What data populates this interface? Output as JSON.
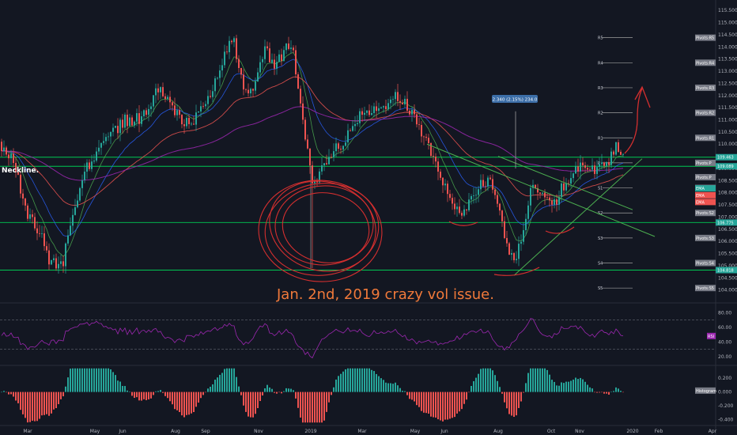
{
  "chart_data": {
    "type": "candlestick",
    "instrument_note": "",
    "x_ticks": [
      "Mar",
      "May",
      "Jun",
      "Aug",
      "Sep",
      "Nov",
      "2019",
      "Mar",
      "May",
      "Jun",
      "Aug",
      "Oct",
      "Nov",
      "2020",
      "Feb",
      "Apr"
    ],
    "price_axis": {
      "ylim": [
        103.5,
        115.8
      ],
      "ticks": [
        "115.500",
        "115.000",
        "114.500",
        "114.000",
        "113.500",
        "113.000",
        "112.500",
        "112.000",
        "111.500",
        "111.000",
        "110.500",
        "110.000",
        "109.500",
        "109.000",
        "108.500",
        "108.000",
        "107.500",
        "107.000",
        "106.500",
        "106.000",
        "105.500",
        "105.000",
        "104.500",
        "104.000"
      ]
    },
    "price_tags": [
      {
        "label": "109.463",
        "value": 109.463,
        "color": "#26a69a"
      },
      {
        "label": "109.089",
        "value": 109.089,
        "color": "#26a69a"
      },
      {
        "label": "106.775",
        "value": 106.775,
        "color": "#26a69a"
      },
      {
        "label": "104.818",
        "value": 104.818,
        "color": "#26a69a"
      }
    ],
    "pivots": [
      {
        "level": "R5",
        "tag": "Pivots:R5",
        "value": 114.38
      },
      {
        "level": "R4",
        "tag": "Pivots:R4",
        "value": 113.35
      },
      {
        "level": "R3",
        "tag": "Pivots:R3",
        "value": 112.32
      },
      {
        "level": "R2",
        "tag": "Pivots:R2",
        "value": 111.29
      },
      {
        "level": "R1",
        "tag": "Pivots:R1",
        "value": 110.26
      },
      {
        "level": "P",
        "tag": "Pivots:P",
        "value": 109.23
      },
      {
        "level": "S1",
        "tag": "Pivots:S1",
        "value": 108.2
      },
      {
        "level": "S2",
        "tag": "Pivots:S2",
        "value": 107.17
      },
      {
        "level": "S3",
        "tag": "Pivots:S3",
        "value": 106.14
      },
      {
        "level": "S4",
        "tag": "Pivots:S4",
        "value": 105.11
      },
      {
        "level": "S5",
        "tag": "Pivots:S5",
        "value": 104.08
      }
    ],
    "pivot_tags_extra": [
      {
        "label": "Pivots:P",
        "value": 108.64
      },
      {
        "label": "EMA",
        "value": 108.18,
        "color": "#26a69a"
      },
      {
        "label": "EMA",
        "value": 107.9,
        "color": "#ef5350"
      },
      {
        "label": "EMA",
        "value": 107.62,
        "color": "#ef5350"
      }
    ],
    "horizontal_levels": [
      109.463,
      109.089,
      106.775,
      104.818
    ],
    "measure_label": "2.340 (2.15%) 234.0",
    "annotations": {
      "neckline": "Neckline.",
      "vol_issue": "Jan. 2nd, 2019 crazy vol issue."
    },
    "rsi": {
      "ylim": [
        10,
        90
      ],
      "ticks": [
        "80.00",
        "60.00",
        "40.00",
        "20.00"
      ],
      "upper_band": 70,
      "lower_band": 30,
      "label": "RSI"
    },
    "macd": {
      "ylim": [
        -0.46,
        0.36
      ],
      "ticks": [
        "0.200",
        "0.000",
        "-0.200",
        "-0.400"
      ],
      "label": "Histogram"
    },
    "candles_seed": 71
  }
}
